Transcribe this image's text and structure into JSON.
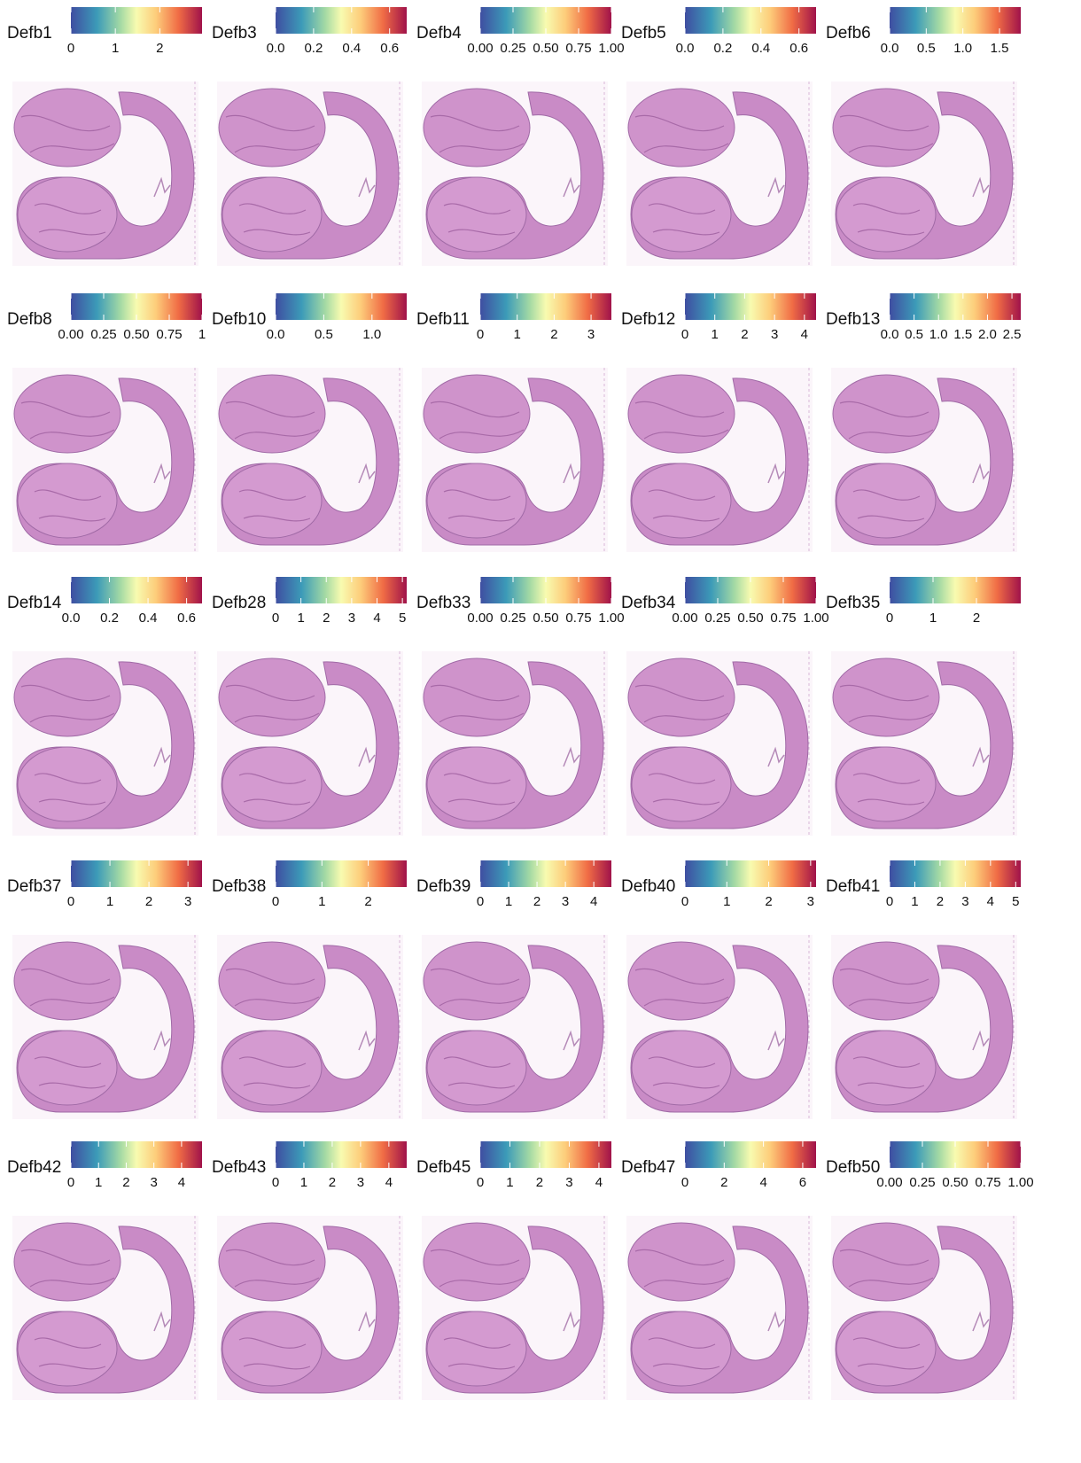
{
  "chart_data": {
    "type": "spatial-panels",
    "panels": [
      {
        "gene": "Defb1",
        "lim": [
          0,
          2.95
        ],
        "ticks": [
          0,
          1,
          2
        ]
      },
      {
        "gene": "Defb3",
        "lim": [
          0,
          0.69
        ],
        "ticks": [
          {
            "value": 0,
            "label": "0.0"
          },
          0.2,
          0.4,
          0.6
        ]
      },
      {
        "gene": "Defb4",
        "lim": [
          0,
          1
        ],
        "ticks": [
          {
            "value": 0,
            "label": "0.00"
          },
          0.25,
          {
            "value": 0.5,
            "label": "0.50"
          },
          0.75,
          {
            "value": 1,
            "label": "1.00"
          }
        ]
      },
      {
        "gene": "Defb5",
        "lim": [
          0,
          0.69
        ],
        "ticks": [
          {
            "value": 0,
            "label": "0.0"
          },
          0.2,
          0.4,
          0.6
        ]
      },
      {
        "gene": "Defb6",
        "lim": [
          0,
          1.79
        ],
        "ticks": [
          {
            "value": 0,
            "label": "0.0"
          },
          0.5,
          {
            "value": 1,
            "label": "1.0"
          },
          1.5
        ]
      },
      {
        "gene": "Defb8",
        "lim": [
          0,
          1
        ],
        "ticks": [
          {
            "value": 0,
            "label": "0.00"
          },
          0.25,
          {
            "value": 0.5,
            "label": "0.50"
          },
          0.75,
          1
        ]
      },
      {
        "gene": "Defb10",
        "lim": [
          0,
          1.36
        ],
        "ticks": [
          {
            "value": 0,
            "label": "0.0"
          },
          0.5,
          {
            "value": 1,
            "label": "1.0"
          }
        ]
      },
      {
        "gene": "Defb11",
        "lim": [
          0,
          3.55
        ],
        "ticks": [
          0,
          1,
          2,
          3
        ]
      },
      {
        "gene": "Defb12",
        "lim": [
          0,
          4.39
        ],
        "ticks": [
          0,
          1,
          2,
          3,
          4
        ]
      },
      {
        "gene": "Defb13",
        "lim": [
          0,
          2.68
        ],
        "ticks": [
          {
            "value": 0,
            "label": "0.0"
          },
          0.5,
          {
            "value": 1,
            "label": "1.0"
          },
          1.5,
          {
            "value": 2,
            "label": "2.0"
          },
          2.5
        ]
      },
      {
        "gene": "Defb14",
        "lim": [
          0,
          0.68
        ],
        "ticks": [
          {
            "value": 0,
            "label": "0.0"
          },
          0.2,
          0.4,
          0.6
        ]
      },
      {
        "gene": "Defb28",
        "lim": [
          0,
          5.17
        ],
        "ticks": [
          0,
          1,
          2,
          3,
          4,
          5
        ]
      },
      {
        "gene": "Defb33",
        "lim": [
          0,
          1
        ],
        "ticks": [
          {
            "value": 0,
            "label": "0.00"
          },
          0.25,
          {
            "value": 0.5,
            "label": "0.50"
          },
          0.75,
          {
            "value": 1,
            "label": "1.00"
          }
        ]
      },
      {
        "gene": "Defb34",
        "lim": [
          0,
          1
        ],
        "ticks": [
          {
            "value": 0,
            "label": "0.00"
          },
          0.25,
          {
            "value": 0.5,
            "label": "0.50"
          },
          0.75,
          {
            "value": 1,
            "label": "1.00"
          }
        ]
      },
      {
        "gene": "Defb35",
        "lim": [
          0,
          3.02
        ],
        "ticks": [
          0,
          1,
          2
        ]
      },
      {
        "gene": "Defb37",
        "lim": [
          0,
          3.36
        ],
        "ticks": [
          0,
          1,
          2,
          3
        ]
      },
      {
        "gene": "Defb38",
        "lim": [
          0,
          2.83
        ],
        "ticks": [
          0,
          1,
          2
        ]
      },
      {
        "gene": "Defb39",
        "lim": [
          0,
          4.62
        ],
        "ticks": [
          0,
          1,
          2,
          3,
          4
        ]
      },
      {
        "gene": "Defb40",
        "lim": [
          0,
          3.13
        ],
        "ticks": [
          0,
          1,
          2,
          3
        ]
      },
      {
        "gene": "Defb41",
        "lim": [
          0,
          5.2
        ],
        "ticks": [
          0,
          1,
          2,
          3,
          4,
          5
        ]
      },
      {
        "gene": "Defb42",
        "lim": [
          0,
          4.74
        ],
        "ticks": [
          0,
          1,
          2,
          3,
          4
        ]
      },
      {
        "gene": "Defb43",
        "lim": [
          0,
          4.63
        ],
        "ticks": [
          0,
          1,
          2,
          3,
          4
        ]
      },
      {
        "gene": "Defb45",
        "lim": [
          0,
          4.42
        ],
        "ticks": [
          0,
          1,
          2,
          3,
          4
        ]
      },
      {
        "gene": "Defb47",
        "lim": [
          0,
          6.68
        ],
        "ticks": [
          0,
          2,
          4,
          6
        ]
      },
      {
        "gene": "Defb50",
        "lim": [
          0,
          1
        ],
        "ticks": [
          {
            "value": 0,
            "label": "0.00"
          },
          0.25,
          {
            "value": 0.5,
            "label": "0.50"
          },
          0.75,
          {
            "value": 1,
            "label": "1.00"
          }
        ]
      }
    ]
  }
}
